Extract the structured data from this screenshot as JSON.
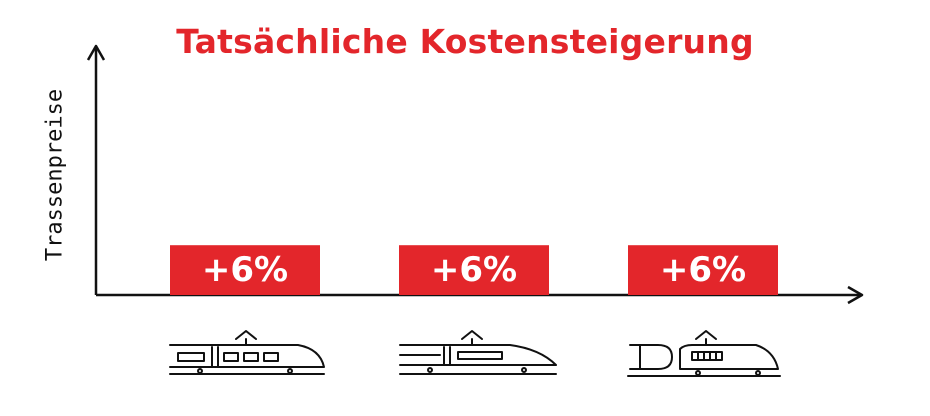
{
  "colors": {
    "accent": "#e3262b",
    "ink": "#111111",
    "bar_text": "#ffffff"
  },
  "chart_data": {
    "type": "bar",
    "title": "Tatsächliche Kostensteigerung",
    "xlabel": "",
    "ylabel": "Trassenpreise",
    "categories": [
      "regional-train-icon",
      "intercity-train-icon",
      "locomotive-train-icon"
    ],
    "values": [
      6,
      6,
      6
    ],
    "value_labels": [
      "+6%",
      "+6%",
      "+6%"
    ],
    "unit": "%",
    "ylim": [
      0,
      30
    ],
    "grid": false,
    "axis_arrows": true
  }
}
